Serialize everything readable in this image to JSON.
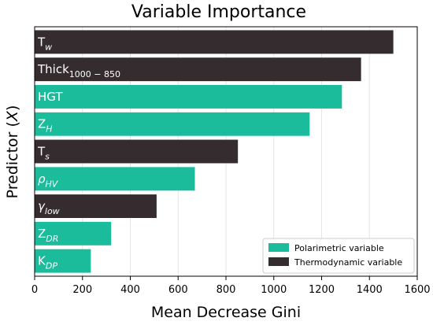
{
  "chart_data": {
    "type": "bar",
    "orientation": "horizontal",
    "title": "Variable Importance",
    "xlabel": "Mean Decrease Gini",
    "ylabel": "Predictor (X)",
    "ylabel_parts": {
      "base": "Predictor (",
      "var": "X",
      "close": ")"
    },
    "xlim": [
      0,
      1600
    ],
    "xticks": [
      0,
      200,
      400,
      600,
      800,
      1000,
      1200,
      1400,
      1600
    ],
    "grid": true,
    "legend_position": "bottom-right",
    "categories": [
      {
        "base": "T",
        "sub": "w",
        "italic_base": false,
        "italic_sub": true
      },
      {
        "base": "Thick",
        "sub": "1000 − 850",
        "italic_base": false,
        "italic_sub": false
      },
      {
        "base": "HGT",
        "sub": "",
        "italic_base": false,
        "italic_sub": false
      },
      {
        "base": "Z",
        "sub": "H",
        "italic_base": false,
        "italic_sub": true
      },
      {
        "base": "T",
        "sub": "s",
        "italic_base": false,
        "italic_sub": true
      },
      {
        "base": "ρ",
        "sub": "HV",
        "italic_base": true,
        "italic_sub": true
      },
      {
        "base": "γ",
        "sub": "low",
        "italic_base": true,
        "italic_sub": true
      },
      {
        "base": "Z",
        "sub": "DR",
        "italic_base": false,
        "italic_sub": true
      },
      {
        "base": "K",
        "sub": "DP",
        "italic_base": false,
        "italic_sub": true
      }
    ],
    "values": [
      1500,
      1365,
      1285,
      1150,
      850,
      670,
      510,
      320,
      235
    ],
    "groups": [
      "Thermodynamic variable",
      "Thermodynamic variable",
      "Polarimetric variable",
      "Polarimetric variable",
      "Thermodynamic variable",
      "Polarimetric variable",
      "Thermodynamic variable",
      "Polarimetric variable",
      "Polarimetric variable"
    ],
    "legend": [
      {
        "name": "Polarimetric variable",
        "color": "#1abc9c"
      },
      {
        "name": "Thermodynamic variable",
        "color": "#342c2e"
      }
    ]
  }
}
